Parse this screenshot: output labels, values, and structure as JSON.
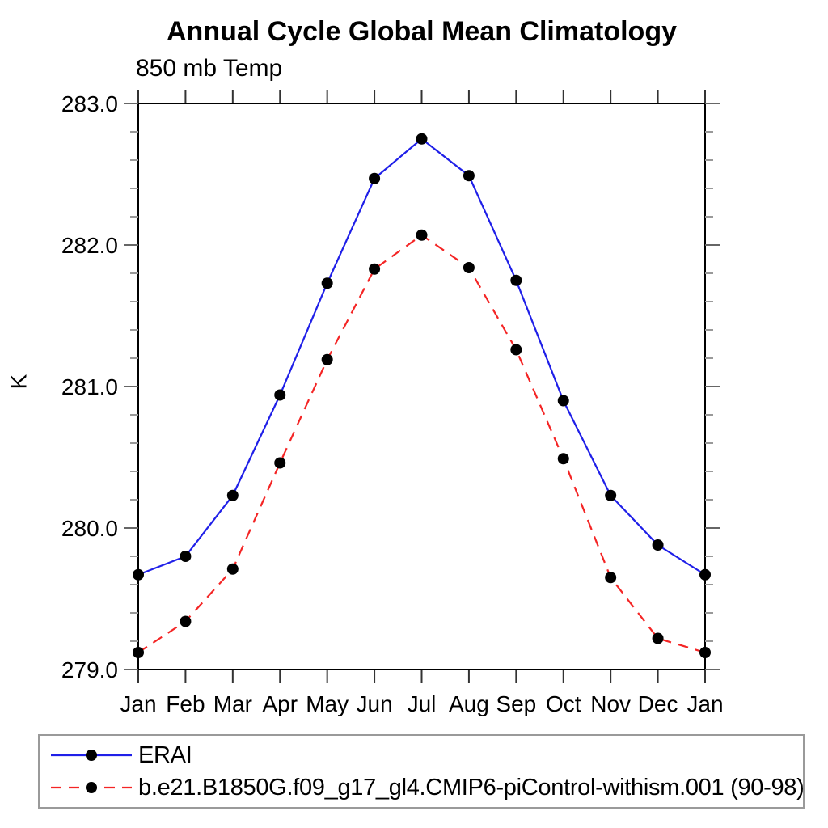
{
  "title": "Annual Cycle Global Mean Climatology",
  "subtitle": "850 mb Temp",
  "ylabel": "K",
  "chart_data": {
    "type": "line",
    "categories": [
      "Jan",
      "Feb",
      "Mar",
      "Apr",
      "May",
      "Jun",
      "Jul",
      "Aug",
      "Sep",
      "Oct",
      "Nov",
      "Dec",
      "Jan"
    ],
    "xlabel": "",
    "ylabel": "K",
    "ylim": [
      279.0,
      283.0
    ],
    "ytick_values": [
      279.0,
      280.0,
      281.0,
      282.0,
      283.0
    ],
    "ytick_labels": [
      "279.0",
      "280.0",
      "281.0",
      "282.0",
      "283.0"
    ],
    "minor_tick_step": 0.2,
    "grid": "off",
    "legend_position": "bottom-left-box",
    "marker": "filled-circle",
    "marker_color": "#000000",
    "series": [
      {
        "name": "ERAI",
        "style": "solid",
        "color": "#1f1fe8",
        "values": [
          279.67,
          279.8,
          280.23,
          280.94,
          281.73,
          282.47,
          282.75,
          282.49,
          281.75,
          280.9,
          280.23,
          279.88,
          279.67
        ]
      },
      {
        "name": "b.e21.B1850G.f09_g17_gl4.CMIP6-piControl-withism.001 (90-98)",
        "style": "dashed",
        "color": "#f42525",
        "values": [
          279.12,
          279.34,
          279.71,
          280.46,
          281.19,
          281.83,
          282.07,
          281.84,
          281.26,
          280.49,
          279.65,
          279.22,
          279.12
        ]
      }
    ]
  }
}
